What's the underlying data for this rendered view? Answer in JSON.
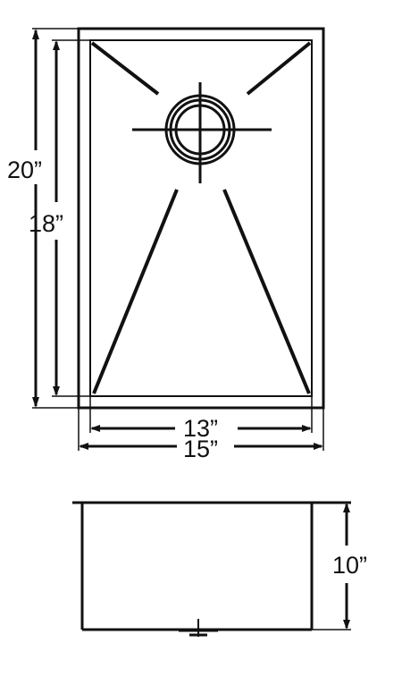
{
  "diagram": {
    "top_view": {
      "outer_height_label": "20”",
      "inner_height_label": "18”",
      "inner_width_label": "13”",
      "outer_width_label": "15”"
    },
    "side_view": {
      "depth_label": "10”"
    },
    "colors": {
      "line": "#111111",
      "background": "#ffffff"
    }
  }
}
